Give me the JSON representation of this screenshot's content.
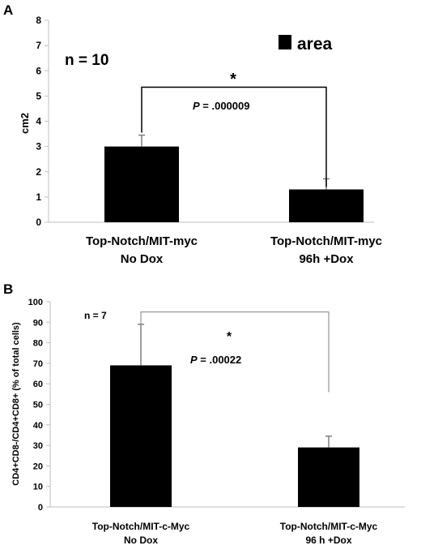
{
  "chart_data": [
    {
      "type": "bar",
      "panel_label": "A",
      "categories": [
        "Top-Notch/MIT-myc No Dox",
        "Top-Notch/MIT-myc 96h +Dox"
      ],
      "category_lines": [
        [
          "Top-Notch/MIT-myc",
          "No Dox"
        ],
        [
          "Top-Notch/MIT-myc",
          "96h +Dox"
        ]
      ],
      "series": [
        {
          "name": "area",
          "values": [
            3.0,
            1.3
          ],
          "errors": [
            0.45,
            0.42
          ]
        }
      ],
      "ylabel": "cm2",
      "ylim": [
        0,
        8
      ],
      "yticks": [
        0,
        1,
        2,
        3,
        4,
        5,
        6,
        7,
        8
      ],
      "legend_label": "area",
      "annotations": {
        "n_text": "n = 10",
        "star": "*",
        "p_text": "P = .000009",
        "p_letter": "P",
        "p_value": " = .000009"
      },
      "bracket": {
        "left_y": 5.35,
        "right_y": 5.35,
        "left_end": 3.55,
        "right_end": 1.4
      },
      "colors": {
        "bar": "#000000",
        "error": "#7f7f7f",
        "axis": "#bfbfbf"
      }
    },
    {
      "type": "bar",
      "panel_label": "B",
      "categories": [
        "Top-Notch/MIT-c-Myc No Dox",
        "Top-Notch/MIT-c-Myc 96 h +Dox"
      ],
      "category_lines": [
        [
          "Top-Notch/MIT-c-Myc",
          "No Dox"
        ],
        [
          "Top-Notch/MIT-c-Myc",
          "96 h +Dox"
        ]
      ],
      "series": [
        {
          "values": [
            69,
            29
          ],
          "errors": [
            20,
            5.5
          ]
        }
      ],
      "ylabel": "CD4+CD8-/CD4+CD8+ (% of total cells)",
      "ylim": [
        0,
        100
      ],
      "yticks": [
        0,
        10,
        20,
        30,
        40,
        50,
        60,
        70,
        80,
        90,
        100
      ],
      "annotations": {
        "n_text": "n = 7",
        "star": "*",
        "p_text": "P = .00022",
        "p_letter": "P",
        "p_value": " = .00022"
      },
      "bracket": {
        "left_y": 95,
        "right_y": 95,
        "left_end": 89,
        "right_end": 56
      },
      "colors": {
        "bar": "#000000",
        "error": "#7f7f7f",
        "axis": "#bfbfbf"
      }
    }
  ]
}
